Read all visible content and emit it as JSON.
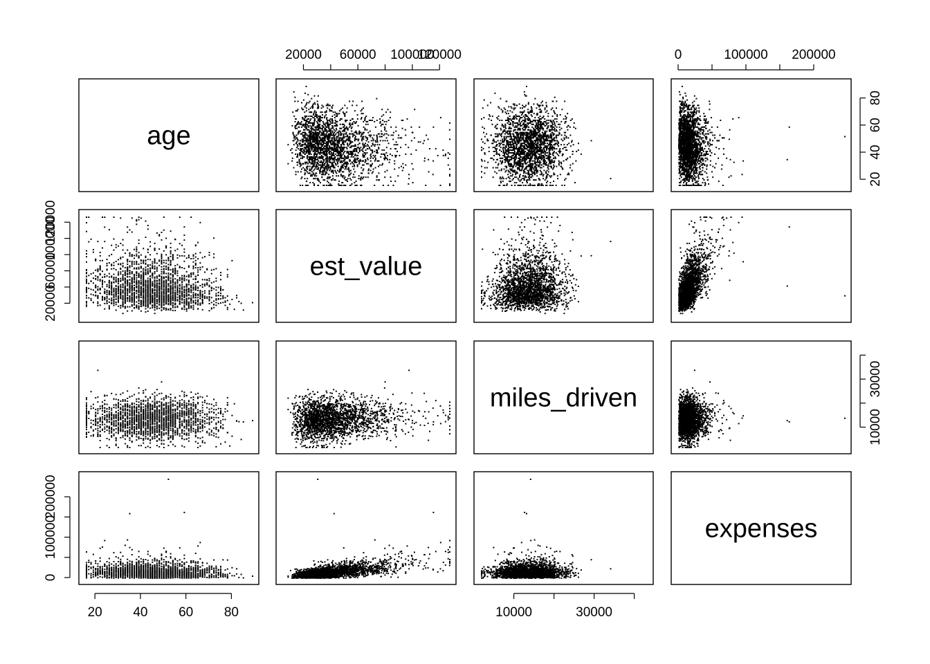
{
  "chart_data": {
    "type": "scatter",
    "kind": "scatterplot-matrix",
    "title": "",
    "variables": [
      "age",
      "est_value",
      "miles_driven",
      "expenses"
    ],
    "ranges": {
      "age": [
        16,
        89
      ],
      "est_value": [
        5000,
        127000
      ],
      "miles_driven": [
        1800,
        43000
      ],
      "expenses": [
        0,
        245000
      ]
    },
    "ticks": {
      "age": [
        20,
        40,
        60,
        80
      ],
      "est_value": [
        20000,
        40000,
        60000,
        80000,
        100000,
        120000
      ],
      "miles_driven": [
        10000,
        20000,
        30000,
        40000
      ],
      "expenses": [
        0,
        50000,
        100000,
        150000,
        200000
      ]
    },
    "tick_labels": {
      "age": [
        "20",
        "40",
        "60",
        "80"
      ],
      "est_value": [
        "20000",
        "",
        "60000",
        "",
        "100000",
        "120000"
      ],
      "miles_driven": [
        "10000",
        "",
        "30000",
        ""
      ],
      "expenses": [
        "0",
        "",
        "100000",
        "",
        "200000"
      ]
    },
    "axes_shown": {
      "bottom": [
        "age",
        "miles_driven"
      ],
      "top": [
        "est_value",
        "expenses"
      ],
      "left": [
        "est_value",
        "expenses"
      ],
      "right": [
        "age",
        "miles_driven"
      ]
    },
    "distributions": {
      "age": {
        "mean": 45,
        "sd": 14,
        "min": 16,
        "max": 89
      },
      "est_value": {
        "mean": 38000,
        "sd": 20000,
        "min": 5000,
        "max": 127000,
        "cap": 127000
      },
      "miles_driven": {
        "mean": 13500,
        "sd": 4500,
        "min": 1800,
        "max": 43000
      },
      "expenses": {
        "mean": 15000,
        "sd": 12000,
        "min": 0,
        "max": 245000
      }
    },
    "outliers": [
      {
        "age": 52,
        "est_value": 30000,
        "miles_driven": 14000,
        "expenses": 245000
      },
      {
        "age": 35,
        "est_value": 42000,
        "miles_driven": 13000,
        "expenses": 160000
      },
      {
        "age": 59,
        "est_value": 115000,
        "miles_driven": 12500,
        "expenses": 163000
      },
      {
        "age": 34,
        "est_value": 72000,
        "miles_driven": 15000,
        "expenses": 95000
      }
    ],
    "point_color": "#000000"
  }
}
